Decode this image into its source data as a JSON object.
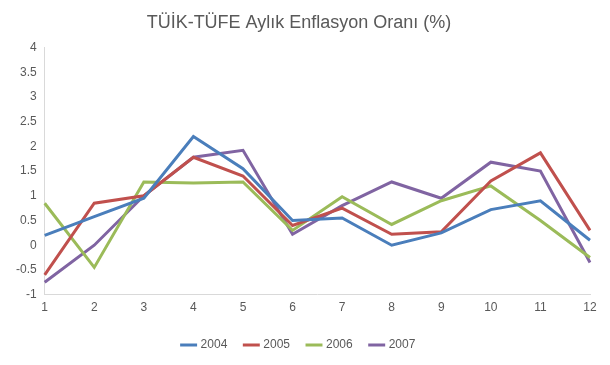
{
  "chart_data": {
    "type": "line",
    "title": "TÜİK-TÜFE Aylık Enflasyon Oranı (%)",
    "categories": [
      "1",
      "2",
      "3",
      "4",
      "5",
      "6",
      "7",
      "8",
      "9",
      "10",
      "11",
      "12"
    ],
    "series": [
      {
        "name": "2004",
        "color": "#4a7ebb",
        "values": [
          0.2,
          0.58,
          0.95,
          2.2,
          1.55,
          0.5,
          0.55,
          0.0,
          0.25,
          0.72,
          0.9,
          0.1
        ]
      },
      {
        "name": "2005",
        "color": "#c0504d",
        "values": [
          -0.6,
          0.85,
          1.0,
          1.78,
          1.4,
          0.4,
          0.75,
          0.22,
          0.27,
          1.3,
          1.87,
          0.3
        ]
      },
      {
        "name": "2006",
        "color": "#9bbb59",
        "values": [
          0.85,
          -0.45,
          1.28,
          1.26,
          1.28,
          0.3,
          0.98,
          0.42,
          0.9,
          1.2,
          0.5,
          -0.25
        ]
      },
      {
        "name": "2007",
        "color": "#8064a2",
        "values": [
          -0.75,
          0.0,
          1.0,
          1.78,
          1.92,
          0.22,
          0.8,
          1.28,
          0.95,
          1.68,
          1.5,
          -0.35
        ]
      }
    ],
    "ylim": [
      -1,
      4
    ],
    "yticks": [
      -1,
      -0.5,
      0,
      0.5,
      1,
      1.5,
      2,
      2.5,
      3,
      3.5,
      4
    ],
    "grid": false,
    "legend": "bottom",
    "marker": "none",
    "line_style": "solid"
  }
}
